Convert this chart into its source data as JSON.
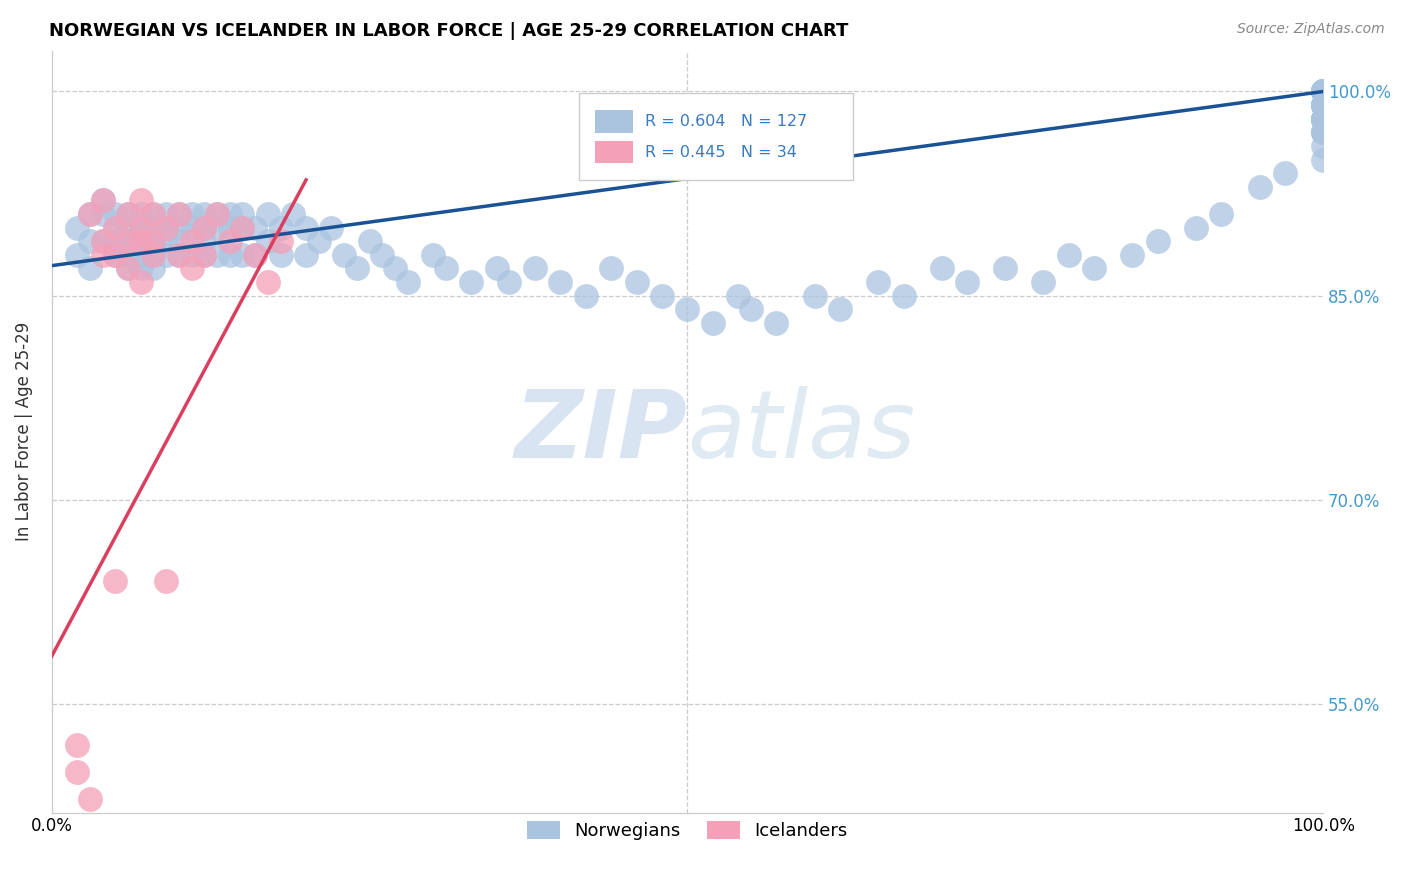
{
  "title": "NORWEGIAN VS ICELANDER IN LABOR FORCE | AGE 25-29 CORRELATION CHART",
  "source": "Source: ZipAtlas.com",
  "ylabel": "In Labor Force | Age 25-29",
  "norwegian_r": "0.604",
  "norwegian_n": "127",
  "icelander_r": "0.445",
  "icelander_n": "34",
  "norwegian_color": "#aac4e0",
  "icelander_color": "#f4a0b8",
  "norwegian_line_color": "#1a5296",
  "icelander_line_color": "#d94060",
  "watermark_zip": "ZIP",
  "watermark_atlas": "atlas",
  "xlim": [
    0.0,
    1.0
  ],
  "ylim": [
    0.47,
    1.03
  ],
  "ytick_vals": [
    0.55,
    0.7,
    0.85,
    1.0
  ],
  "ytick_labels": [
    "55.0%",
    "70.0%",
    "85.0%",
    "100.0%"
  ],
  "nor_x": [
    0.02,
    0.02,
    0.03,
    0.03,
    0.03,
    0.04,
    0.04,
    0.04,
    0.05,
    0.05,
    0.05,
    0.05,
    0.06,
    0.06,
    0.06,
    0.06,
    0.06,
    0.07,
    0.07,
    0.07,
    0.07,
    0.07,
    0.08,
    0.08,
    0.08,
    0.08,
    0.08,
    0.09,
    0.09,
    0.09,
    0.09,
    0.1,
    0.1,
    0.1,
    0.1,
    0.11,
    0.11,
    0.11,
    0.12,
    0.12,
    0.12,
    0.12,
    0.13,
    0.13,
    0.13,
    0.14,
    0.14,
    0.14,
    0.15,
    0.15,
    0.15,
    0.16,
    0.16,
    0.17,
    0.17,
    0.18,
    0.18,
    0.19,
    0.2,
    0.2,
    0.21,
    0.22,
    0.23,
    0.24,
    0.25,
    0.26,
    0.27,
    0.28,
    0.3,
    0.31,
    0.33,
    0.35,
    0.36,
    0.38,
    0.4,
    0.42,
    0.44,
    0.46,
    0.48,
    0.5,
    0.52,
    0.54,
    0.55,
    0.57,
    0.6,
    0.62,
    0.65,
    0.67,
    0.7,
    0.72,
    0.75,
    0.78,
    0.8,
    0.82,
    0.85,
    0.87,
    0.9,
    0.92,
    0.95,
    0.97,
    1.0,
    1.0,
    1.0,
    1.0,
    1.0,
    1.0,
    1.0,
    1.0,
    1.0,
    1.0,
    1.0,
    1.0,
    1.0,
    1.0,
    1.0,
    1.0,
    1.0,
    1.0,
    1.0,
    1.0,
    1.0,
    1.0,
    1.0,
    1.0,
    1.0,
    1.0,
    1.0
  ],
  "nor_y": [
    0.9,
    0.88,
    0.91,
    0.89,
    0.87,
    0.91,
    0.89,
    0.92,
    0.88,
    0.9,
    0.91,
    0.89,
    0.88,
    0.9,
    0.91,
    0.89,
    0.87,
    0.9,
    0.88,
    0.91,
    0.89,
    0.87,
    0.9,
    0.88,
    0.91,
    0.89,
    0.87,
    0.9,
    0.88,
    0.91,
    0.89,
    0.9,
    0.88,
    0.91,
    0.89,
    0.9,
    0.88,
    0.91,
    0.9,
    0.88,
    0.91,
    0.89,
    0.9,
    0.88,
    0.91,
    0.9,
    0.88,
    0.91,
    0.9,
    0.88,
    0.91,
    0.9,
    0.88,
    0.91,
    0.89,
    0.9,
    0.88,
    0.91,
    0.9,
    0.88,
    0.89,
    0.9,
    0.88,
    0.87,
    0.89,
    0.88,
    0.87,
    0.86,
    0.88,
    0.87,
    0.86,
    0.87,
    0.86,
    0.87,
    0.86,
    0.85,
    0.87,
    0.86,
    0.85,
    0.84,
    0.83,
    0.85,
    0.84,
    0.83,
    0.85,
    0.84,
    0.86,
    0.85,
    0.87,
    0.86,
    0.87,
    0.86,
    0.88,
    0.87,
    0.88,
    0.89,
    0.9,
    0.91,
    0.93,
    0.94,
    0.95,
    0.97,
    0.98,
    0.99,
    1.0,
    0.98,
    1.0,
    0.99,
    0.97,
    1.0,
    0.98,
    0.96,
    0.99,
    1.0,
    0.98,
    1.0,
    0.97,
    0.99,
    1.0,
    0.98,
    1.0,
    0.99,
    0.97,
    1.0,
    0.98,
    0.99,
    1.0
  ],
  "ice_x": [
    0.02,
    0.02,
    0.03,
    0.03,
    0.04,
    0.04,
    0.04,
    0.05,
    0.05,
    0.05,
    0.06,
    0.06,
    0.06,
    0.07,
    0.07,
    0.07,
    0.07,
    0.08,
    0.08,
    0.08,
    0.09,
    0.09,
    0.1,
    0.1,
    0.11,
    0.11,
    0.12,
    0.12,
    0.13,
    0.14,
    0.15,
    0.16,
    0.17,
    0.18
  ],
  "ice_y": [
    0.5,
    0.52,
    0.48,
    0.91,
    0.89,
    0.92,
    0.88,
    0.9,
    0.64,
    0.88,
    0.89,
    0.91,
    0.87,
    0.89,
    0.92,
    0.86,
    0.9,
    0.88,
    0.91,
    0.89,
    0.64,
    0.9,
    0.88,
    0.91,
    0.89,
    0.87,
    0.9,
    0.88,
    0.91,
    0.89,
    0.9,
    0.88,
    0.86,
    0.89
  ]
}
